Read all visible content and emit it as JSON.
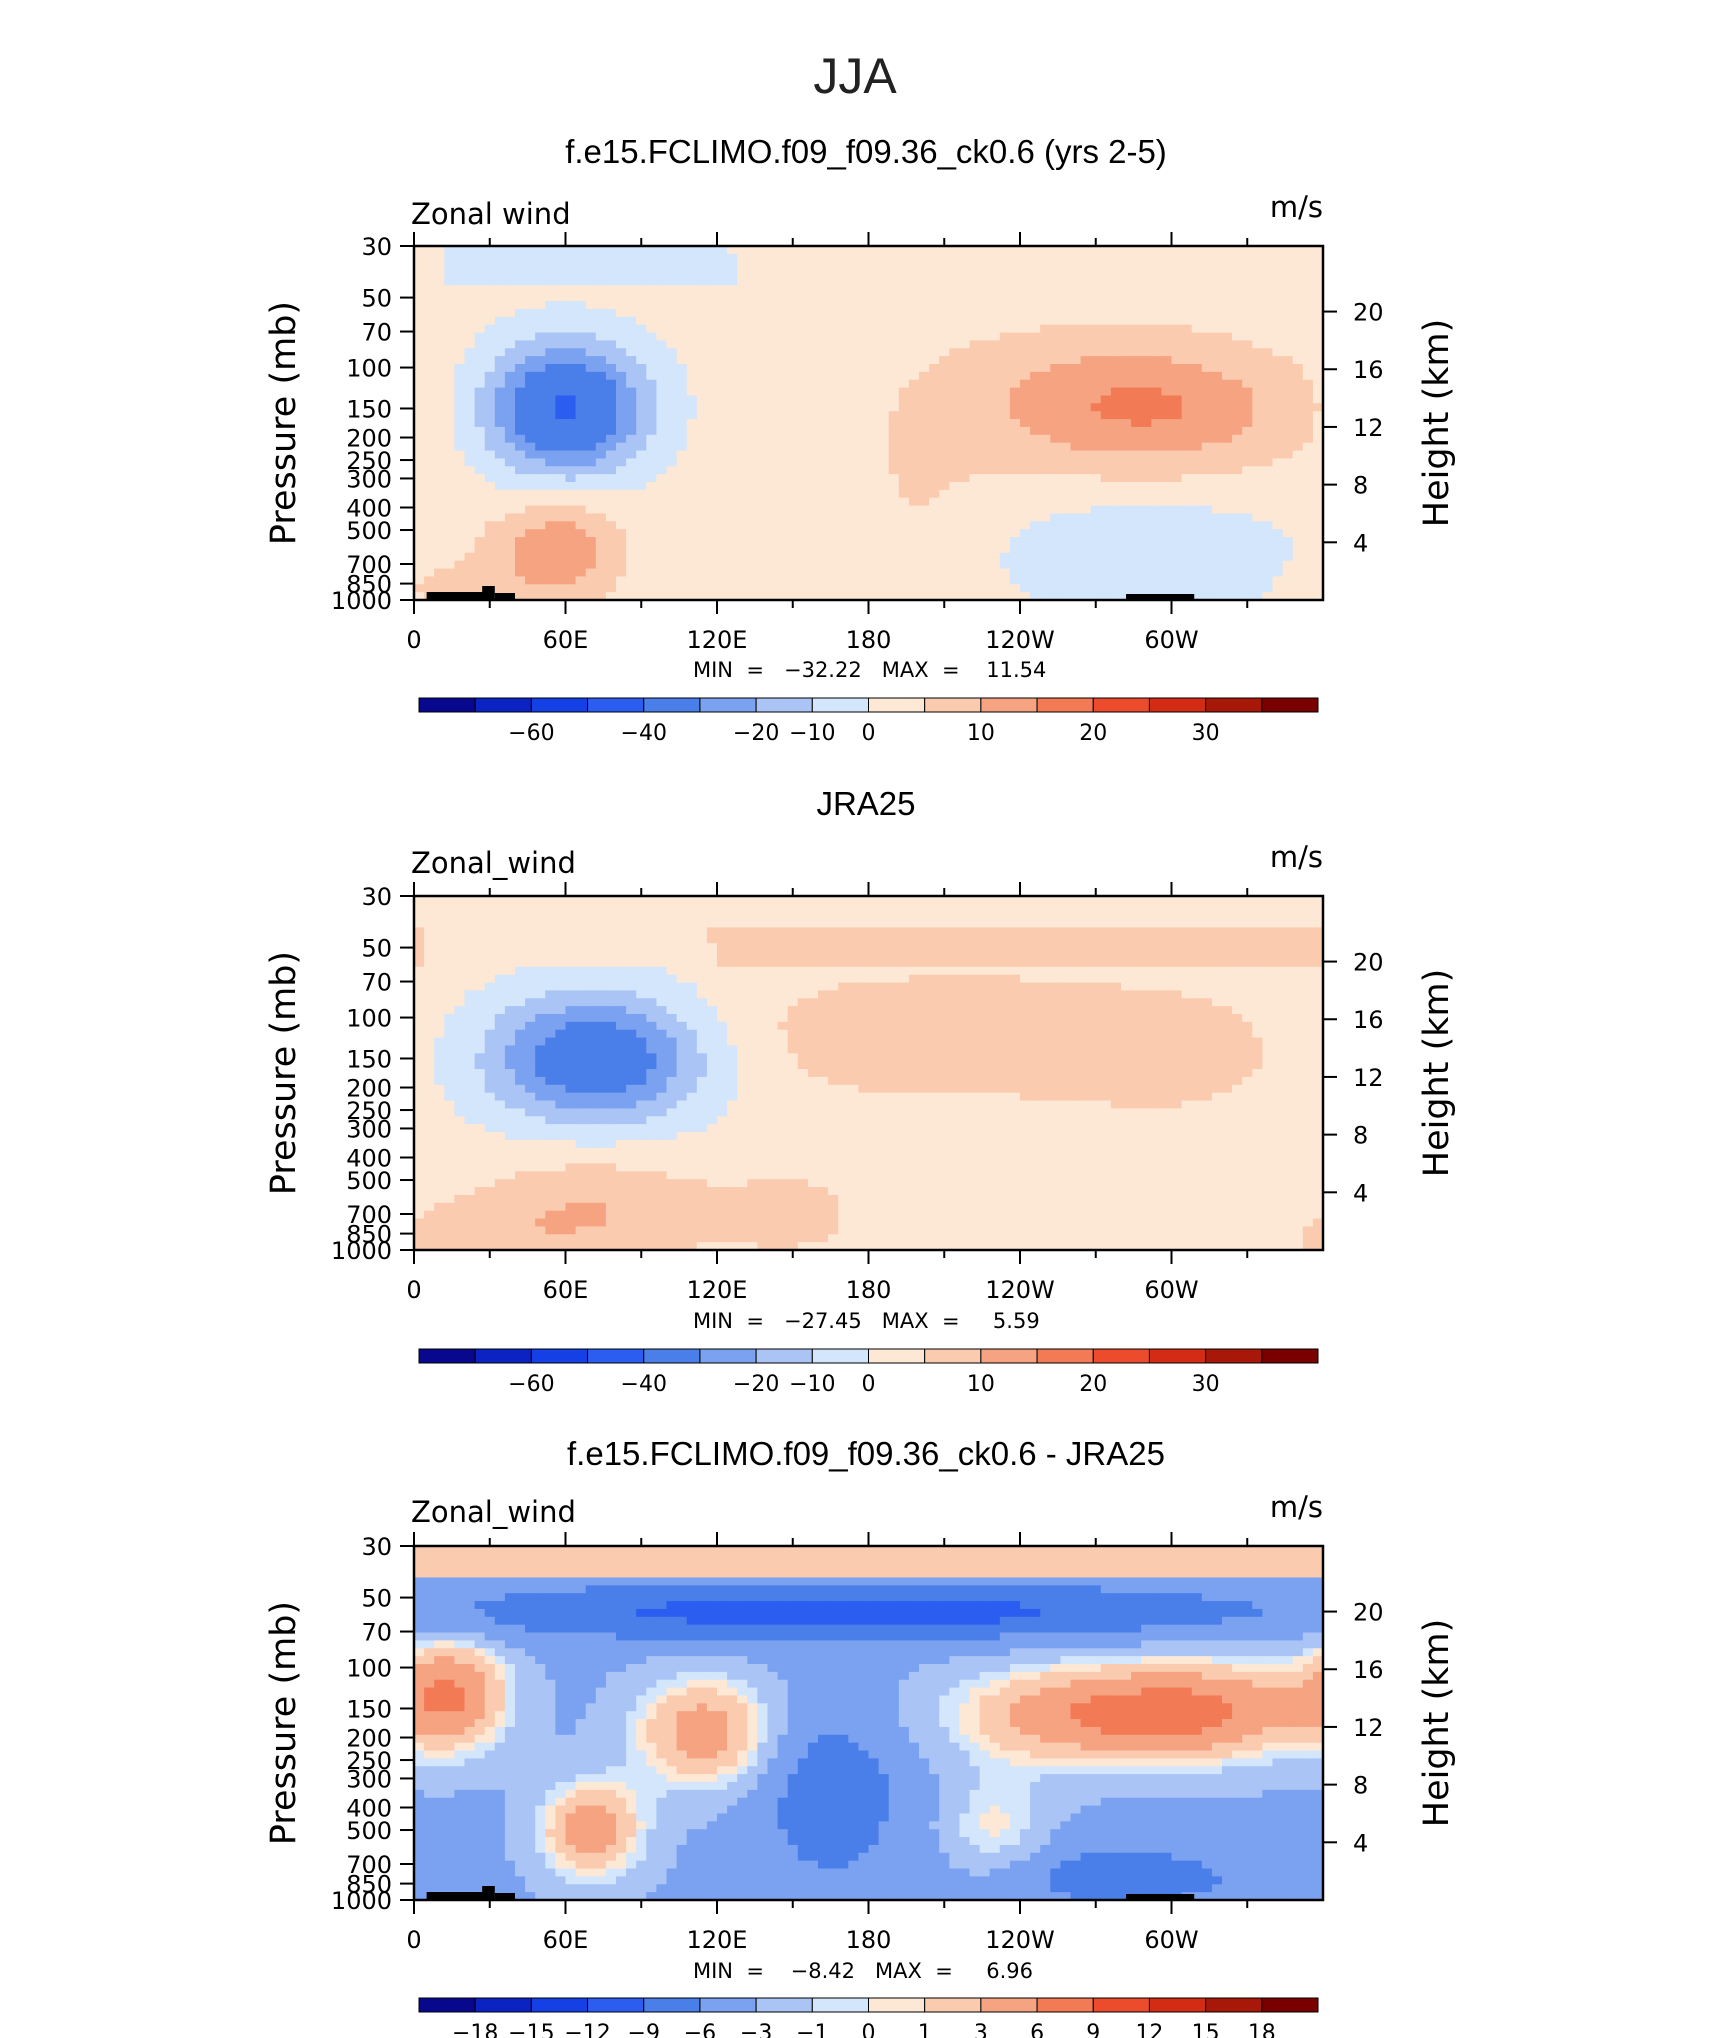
{
  "page": {
    "title": "JJA"
  },
  "panels": [
    {
      "title": "f.e15.FCLIMO.f09_f09.36_ck0.6 (yrs 2-5)",
      "left_label": "Zonal wind",
      "right_label": "m/s",
      "stats_label": "MIN  =   −32.22   MAX  =    11.54",
      "colorbar": {
        "colors": [
          "#08088f",
          "#0c23c4",
          "#1540e6",
          "#2b5df0",
          "#4a7ee8",
          "#7aa2f0",
          "#a9c4f5",
          "#d3e6fb",
          "#fde8d6",
          "#fbcbb0",
          "#f6a382",
          "#f27a55",
          "#ec4c2b",
          "#d42c14",
          "#a81808",
          "#7a0000"
        ],
        "labels": [
          "−60",
          "−40",
          "−20",
          "−10",
          "0",
          "10",
          "20",
          "30"
        ],
        "label_boundaries": [
          2,
          4,
          6,
          7,
          8,
          10,
          12,
          14
        ]
      }
    },
    {
      "title": "JRA25",
      "left_label": "Zonal_wind",
      "right_label": "m/s",
      "stats_label": "MIN  =   −27.45   MAX  =     5.59",
      "colorbar": {
        "colors": [
          "#08088f",
          "#0c23c4",
          "#1540e6",
          "#2b5df0",
          "#4a7ee8",
          "#7aa2f0",
          "#a9c4f5",
          "#d3e6fb",
          "#fde8d6",
          "#fbcbb0",
          "#f6a382",
          "#f27a55",
          "#ec4c2b",
          "#d42c14",
          "#a81808",
          "#7a0000"
        ],
        "labels": [
          "−60",
          "−40",
          "−20",
          "−10",
          "0",
          "10",
          "20",
          "30"
        ],
        "label_boundaries": [
          2,
          4,
          6,
          7,
          8,
          10,
          12,
          14
        ]
      }
    },
    {
      "title": "f.e15.FCLIMO.f09_f09.36_ck0.6 - JRA25",
      "left_label": "Zonal_wind",
      "right_label": "m/s",
      "stats_label": "MIN  =    −8.42   MAX  =     6.96",
      "colorbar": {
        "colors": [
          "#08088f",
          "#0c23c4",
          "#1540e6",
          "#2b5df0",
          "#4a7ee8",
          "#7aa2f0",
          "#a9c4f5",
          "#d3e6fb",
          "#fde8d6",
          "#fbcbb0",
          "#f6a382",
          "#f27a55",
          "#ec4c2b",
          "#d42c14",
          "#a81808",
          "#7a0000"
        ],
        "labels": [
          "−18",
          "−15",
          "−12",
          "−9",
          "−6",
          "−3",
          "−1",
          "0",
          "1",
          "3",
          "6",
          "9",
          "12",
          "15",
          "18"
        ],
        "label_boundaries": [
          1,
          2,
          3,
          4,
          5,
          6,
          7,
          8,
          9,
          10,
          11,
          12,
          13,
          14,
          15
        ]
      }
    }
  ],
  "axes": {
    "x_ticks": [
      "0",
      "60E",
      "120E",
      "180",
      "120W",
      "60W"
    ],
    "y_left_ticks": [
      "30",
      "50",
      "70",
      "100",
      "150",
      "200",
      "250",
      "300",
      "400",
      "500",
      "700",
      "850",
      "1000"
    ],
    "y_left_label": "Pressure  (mb)",
    "y_right_ticks": [
      "20",
      "16",
      "12",
      "8",
      "4"
    ],
    "y_right_label": "Height  (km)"
  },
  "chart_data": [
    {
      "type": "heatmap",
      "title": "f.e15.FCLIMO.f09_f09.36_ck0.6 (yrs 2-5)",
      "variable": "Zonal wind",
      "units": "m/s",
      "x": [
        "0",
        "60E",
        "120E",
        "180",
        "120W",
        "60W"
      ],
      "y": [
        30,
        50,
        70,
        100,
        150,
        200,
        250,
        300,
        400,
        500,
        700,
        850,
        1000
      ],
      "min": -32.22,
      "max": 11.54,
      "contour_levels": [
        -70,
        -60,
        -50,
        -40,
        -30,
        -20,
        -15,
        -10,
        -5,
        0,
        5,
        10,
        15,
        20,
        25,
        30,
        35
      ],
      "features": [
        {
          "lon": 60,
          "p": 150,
          "u": -30
        },
        {
          "lon": 295,
          "p": 150,
          "u": 10
        },
        {
          "lon": 60,
          "p": 600,
          "u": 8
        },
        {
          "lon": 285,
          "p": 650,
          "u": -6
        }
      ]
    },
    {
      "type": "heatmap",
      "title": "JRA25",
      "variable": "Zonal_wind",
      "units": "m/s",
      "x": [
        "0",
        "60E",
        "120E",
        "180",
        "120W",
        "60W"
      ],
      "y": [
        30,
        50,
        70,
        100,
        150,
        200,
        250,
        300,
        400,
        500,
        700,
        850,
        1000
      ],
      "min": -27.45,
      "max": 5.59,
      "contour_levels": [
        -70,
        -60,
        -50,
        -40,
        -30,
        -20,
        -15,
        -10,
        -5,
        0,
        5,
        10,
        15,
        20,
        25,
        30,
        35
      ],
      "features": [
        {
          "lon": 75,
          "p": 150,
          "u": -25
        },
        {
          "lon": 300,
          "p": 150,
          "u": 5
        },
        {
          "lon": 80,
          "p": 700,
          "u": 5
        }
      ]
    },
    {
      "type": "heatmap",
      "title": "f.e15.FCLIMO.f09_f09.36_ck0.6 - JRA25",
      "variable": "Zonal_wind",
      "units": "m/s",
      "x": [
        "0",
        "60E",
        "120E",
        "180",
        "120W",
        "60W"
      ],
      "y": [
        30,
        50,
        70,
        100,
        150,
        200,
        250,
        300,
        400,
        500,
        700,
        850,
        1000
      ],
      "min": -8.42,
      "max": 6.96,
      "contour_levels": [
        -21,
        -18,
        -15,
        -12,
        -9,
        -6,
        -3,
        -1,
        0,
        1,
        3,
        6,
        9,
        12,
        15,
        18,
        21
      ],
      "features": [
        {
          "lon": 180,
          "p": 60,
          "u": -7
        },
        {
          "lon": 10,
          "p": 150,
          "u": 5
        },
        {
          "lon": 115,
          "p": 200,
          "u": 4
        },
        {
          "lon": 275,
          "p": 150,
          "u": 6
        },
        {
          "lon": 165,
          "p": 350,
          "u": -5
        }
      ]
    }
  ]
}
